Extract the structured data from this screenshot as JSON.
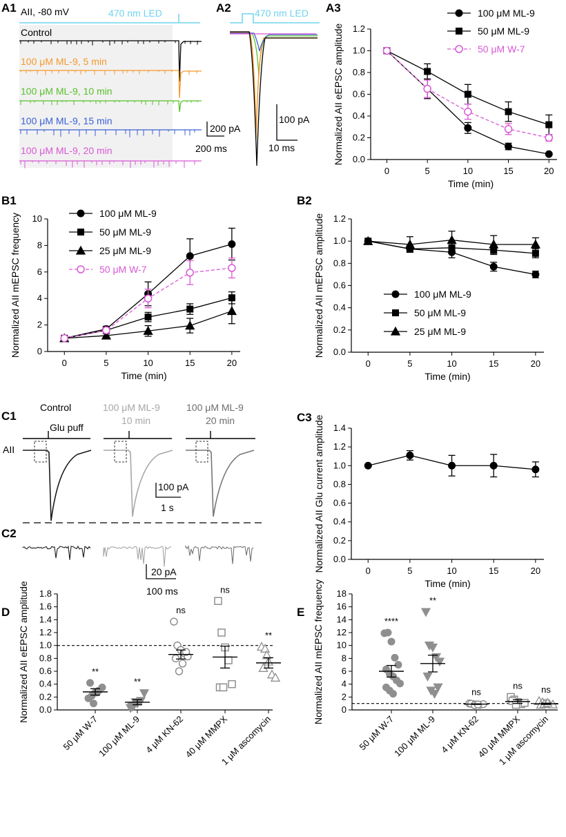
{
  "colors": {
    "black": "#000000",
    "magenta": "#d957d6",
    "led": "#6fd3ee",
    "orange": "#f5982b",
    "green": "#58c02a",
    "blue": "#3a5fd6",
    "gray_light": "#a6a6a6",
    "gray_mid": "#757575",
    "gray_dot": "#8f8f8f",
    "shade": "#f1f1f1"
  },
  "panels": {
    "a1": {
      "label": "A1",
      "cell_label": "AII, -80 mV",
      "stim_label": "470 nm LED",
      "scale_y": "200 pA",
      "scale_x": "200 ms",
      "traces": [
        "Control",
        "100 μM ML-9, 5 min",
        "100 μM ML-9, 10 min",
        "100 μM ML-9, 15 min",
        "100 μM ML-9, 20 min"
      ]
    },
    "a2": {
      "label": "A2",
      "stim_label": "470 nm LED",
      "scale_y": "100 pA",
      "scale_x": "10 ms"
    },
    "a3": {
      "label": "A3"
    },
    "b1": {
      "label": "B1"
    },
    "b2": {
      "label": "B2"
    },
    "c1": {
      "label": "C1",
      "conditions": [
        "Control",
        "100 μM ML-9",
        "10 min",
        "100 μM ML-9",
        "20 min"
      ],
      "puff_label": "Glu puff",
      "cell_label": "AII",
      "scale_y": "100 pA",
      "scale_x": "1 s"
    },
    "c2": {
      "label": "C2",
      "scale_y": "20 pA",
      "scale_x": "100 ms"
    },
    "c3": {
      "label": "C3"
    },
    "d": {
      "label": "D"
    },
    "e": {
      "label": "E"
    }
  },
  "chart_data": [
    {
      "id": "A3",
      "type": "line",
      "title": "",
      "xlabel": "Time (min)",
      "ylabel": "Normalized AII eEPSC amplitude",
      "x": [
        0,
        5,
        10,
        15,
        20
      ],
      "xlim": [
        -2,
        21
      ],
      "ylim": [
        0,
        1.2
      ],
      "xticks": [
        0,
        5,
        10,
        15,
        20
      ],
      "yticks": [
        "0.0",
        "0.2",
        "0.4",
        "0.6",
        "0.8",
        "1.0",
        "1.2"
      ],
      "legend_position": "top-right",
      "series": [
        {
          "name": "100 μM ML-9",
          "marker": "circle",
          "color": "#000000",
          "dashed": false,
          "values": [
            1.0,
            0.65,
            0.29,
            0.12,
            0.05
          ],
          "errors": [
            0,
            0.09,
            0.05,
            0.03,
            0.01
          ]
        },
        {
          "name": "50 μM ML-9",
          "marker": "square",
          "color": "#000000",
          "dashed": false,
          "values": [
            1.0,
            0.81,
            0.6,
            0.44,
            0.32
          ],
          "errors": [
            0,
            0.07,
            0.09,
            0.09,
            0.09
          ]
        },
        {
          "name": "50 μM W-7",
          "marker": "open-circle",
          "color": "#d957d6",
          "dashed": true,
          "values": [
            1.0,
            0.65,
            0.44,
            0.28,
            0.2
          ],
          "errors": [
            0,
            0.08,
            0.07,
            0.05,
            0.03
          ]
        }
      ]
    },
    {
      "id": "B1",
      "type": "line",
      "title": "",
      "xlabel": "Time (min)",
      "ylabel": "Normalized AII mEPSC frequency",
      "x": [
        0,
        5,
        10,
        15,
        20
      ],
      "xlim": [
        -2,
        21
      ],
      "ylim": [
        0,
        10
      ],
      "xticks": [
        0,
        5,
        10,
        15,
        20
      ],
      "yticks": [
        "0",
        "2",
        "4",
        "6",
        "8",
        "10"
      ],
      "legend_position": "top-left",
      "series": [
        {
          "name": "100 μM ML-9",
          "marker": "circle",
          "color": "#000000",
          "dashed": false,
          "values": [
            1.0,
            1.7,
            4.35,
            7.2,
            8.1
          ],
          "errors": [
            0,
            0.2,
            0.9,
            1.3,
            1.2
          ]
        },
        {
          "name": "50 μM ML-9",
          "marker": "square",
          "color": "#000000",
          "dashed": false,
          "values": [
            1.0,
            1.6,
            2.6,
            3.2,
            4.05
          ],
          "errors": [
            0,
            0.2,
            0.35,
            0.4,
            0.45
          ]
        },
        {
          "name": "25 μM ML-9",
          "marker": "triangle",
          "color": "#000000",
          "dashed": false,
          "values": [
            1.0,
            1.2,
            1.55,
            1.95,
            3.05
          ],
          "errors": [
            0,
            0.15,
            0.4,
            0.55,
            0.95
          ]
        },
        {
          "name": "50 μM W-7",
          "marker": "open-circle",
          "color": "#d957d6",
          "dashed": true,
          "values": [
            1.0,
            1.6,
            4.0,
            5.95,
            6.3
          ],
          "errors": [
            0,
            0.2,
            0.7,
            0.9,
            0.75
          ]
        }
      ]
    },
    {
      "id": "B2",
      "type": "line",
      "title": "",
      "xlabel": "Time (min)",
      "ylabel": "Normalized AII mEPSC amplitude",
      "x": [
        0,
        5,
        10,
        15,
        20
      ],
      "xlim": [
        -2,
        21
      ],
      "ylim": [
        0,
        1.2
      ],
      "xticks": [
        0,
        5,
        10,
        15,
        20
      ],
      "yticks": [
        "0.0",
        "0.2",
        "0.4",
        "0.6",
        "0.8",
        "1.0",
        "1.2"
      ],
      "legend_position": "middle",
      "series": [
        {
          "name": "100 μM ML-9",
          "marker": "circle",
          "color": "#000000",
          "dashed": false,
          "values": [
            1.0,
            0.93,
            0.9,
            0.77,
            0.7
          ],
          "errors": [
            0,
            0.03,
            0.05,
            0.04,
            0.03
          ]
        },
        {
          "name": "50 μM ML-9",
          "marker": "square",
          "color": "#000000",
          "dashed": false,
          "values": [
            1.0,
            0.93,
            0.94,
            0.92,
            0.89
          ],
          "errors": [
            0,
            0.03,
            0.04,
            0.04,
            0.04
          ]
        },
        {
          "name": "25 μM ML-9",
          "marker": "triangle",
          "color": "#000000",
          "dashed": false,
          "values": [
            1.0,
            0.97,
            1.01,
            0.97,
            0.97
          ],
          "errors": [
            0,
            0.07,
            0.08,
            0.08,
            0.06
          ]
        }
      ]
    },
    {
      "id": "C3",
      "type": "line",
      "title": "",
      "xlabel": "Time (min)",
      "ylabel": "Normalized AII Glu current amplitude",
      "x": [
        0,
        5,
        10,
        15,
        20
      ],
      "xlim": [
        -2,
        21
      ],
      "ylim": [
        0,
        1.4
      ],
      "xticks": [
        0,
        5,
        10,
        15,
        20
      ],
      "yticks": [
        "0.0",
        "0.2",
        "0.4",
        "0.6",
        "0.8",
        "1.0",
        "1.2",
        "1.4"
      ],
      "series": [
        {
          "name": "Glu current",
          "marker": "circle",
          "color": "#000000",
          "dashed": false,
          "values": [
            1.0,
            1.11,
            1.0,
            1.0,
            0.96
          ],
          "errors": [
            0,
            0.05,
            0.11,
            0.12,
            0.08
          ]
        }
      ]
    },
    {
      "id": "D",
      "type": "scatter",
      "title": "",
      "xlabel": "",
      "ylabel": "Normalized AII eEPSC amplitude",
      "ylim": [
        0,
        1.8
      ],
      "yticks": [
        "0.0",
        "0.2",
        "0.4",
        "0.6",
        "0.8",
        "1.0",
        "1.2",
        "1.4",
        "1.6",
        "1.8"
      ],
      "reference_line": 1.0,
      "categories": [
        "50 μM W-7",
        "100 μM ML-9",
        "4 μM KN-62",
        "40 μM MMPX",
        "1 μM ascomycin"
      ],
      "groups": [
        {
          "marker": "filled-circle",
          "significance": "**",
          "mean": 0.28,
          "sem": 0.05,
          "points": [
            0.18,
            0.22,
            0.27,
            0.3,
            0.35,
            0.42,
            0.1,
            0.27
          ]
        },
        {
          "marker": "filled-triangle",
          "significance": "**",
          "mean": 0.12,
          "sem": 0.04,
          "points": [
            0.03,
            0.07,
            0.1,
            0.14,
            0.26,
            0.05,
            0.12
          ]
        },
        {
          "marker": "open-circle",
          "significance": "ns",
          "mean": 0.86,
          "sem": 0.07,
          "points": [
            1.37,
            1.0,
            0.93,
            0.88,
            0.83,
            0.8,
            0.6,
            0.72,
            0.9
          ]
        },
        {
          "marker": "open-square",
          "significance": "ns",
          "mean": 0.82,
          "sem": 0.17,
          "points": [
            1.69,
            1.2,
            0.97,
            0.77,
            0.4,
            0.35,
            0.35
          ]
        },
        {
          "marker": "open-triangle",
          "significance": "**",
          "mean": 0.73,
          "sem": 0.08,
          "points": [
            0.98,
            0.95,
            0.75,
            0.55,
            0.5,
            0.65,
            0.85
          ]
        }
      ]
    },
    {
      "id": "E",
      "type": "scatter",
      "title": "",
      "xlabel": "",
      "ylabel": "Normalized AII mEPSC frequency",
      "ylim": [
        0,
        18
      ],
      "yticks": [
        "0",
        "2",
        "4",
        "6",
        "8",
        "10",
        "12",
        "14",
        "16",
        "18"
      ],
      "reference_line": 1.0,
      "categories": [
        "50 μM W-7",
        "100 μM ML-9",
        "4 μM KN-62",
        "40 μM MMPX",
        "1 μM ascomycin"
      ],
      "groups": [
        {
          "marker": "filled-circle",
          "significance": "****",
          "mean": 6.0,
          "sem": 0.9,
          "points": [
            11.9,
            12.0,
            10.6,
            8.1,
            7.0,
            6.3,
            5.6,
            5.2,
            4.6,
            4.1,
            3.5,
            3.0,
            2.5
          ]
        },
        {
          "marker": "filled-triangle",
          "significance": "**",
          "mean": 7.2,
          "sem": 1.3,
          "points": [
            15.2,
            10.0,
            9.7,
            8.2,
            7.5,
            5.2,
            3.0,
            2.5,
            3.5
          ]
        },
        {
          "marker": "open-circle",
          "significance": "ns",
          "mean": 0.9,
          "sem": 0.05,
          "points": [
            1.0,
            0.9,
            0.85,
            0.8,
            0.9,
            0.95,
            0.75,
            0.85
          ]
        },
        {
          "marker": "open-square",
          "significance": "ns",
          "mean": 1.3,
          "sem": 0.3,
          "points": [
            2.0,
            1.6,
            1.2,
            0.9,
            1.1,
            1.4,
            0.8
          ]
        },
        {
          "marker": "open-triangle",
          "significance": "ns",
          "mean": 0.95,
          "sem": 0.1,
          "points": [
            1.4,
            1.2,
            1.0,
            0.9,
            0.85,
            0.8,
            0.95,
            1.1
          ]
        }
      ]
    }
  ]
}
